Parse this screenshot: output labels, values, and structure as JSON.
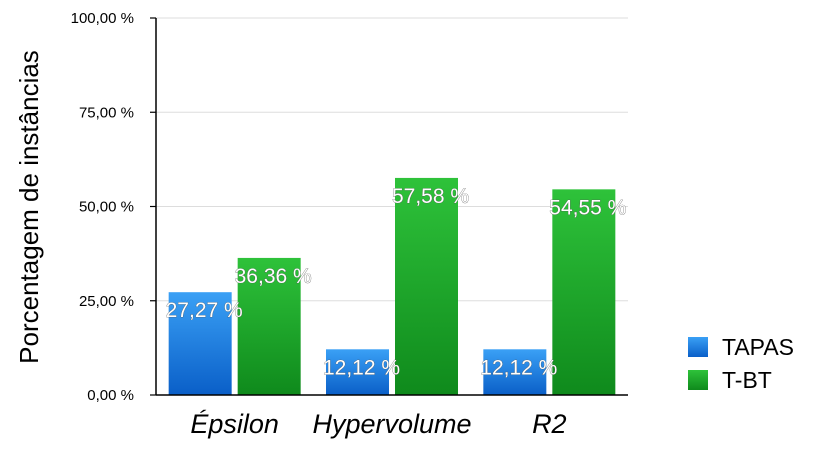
{
  "chart_data": {
    "type": "bar",
    "categories": [
      "Épsilon",
      "Hypervolume",
      "R2"
    ],
    "series": [
      {
        "name": "TAPAS",
        "values": [
          27.27,
          12.12,
          12.12
        ],
        "color": "#1a7be0"
      },
      {
        "name": "T-BT",
        "values": [
          36.36,
          57.58,
          54.55
        ],
        "color": "#1fa32a"
      }
    ],
    "data_labels": {
      "TAPAS": [
        "27,27 %",
        "12,12 %",
        "12,12 %"
      ],
      "T-BT": [
        "36,36 %",
        "57,58 %",
        "54,55 %"
      ]
    },
    "ylabel": "Porcentagem de instâncias",
    "xlabel": "",
    "ylim": [
      0,
      100
    ],
    "yticks": [
      0,
      25,
      50,
      75,
      100
    ],
    "ytick_labels": [
      "0,00 %",
      "25,00 %",
      "50,00 %",
      "75,00 %",
      "100,00 %"
    ],
    "grid": true,
    "legend_position": "right"
  }
}
